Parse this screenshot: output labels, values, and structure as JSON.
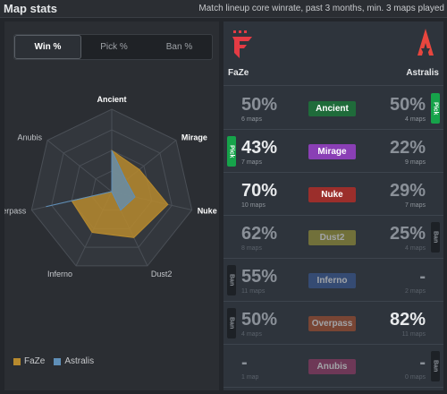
{
  "header": {
    "title": "Map stats",
    "subtitle": "Match lineup core winrate, past 3 months, min. 3 maps played"
  },
  "tabs": [
    {
      "label": "Win %",
      "active": true
    },
    {
      "label": "Pick %",
      "active": false
    },
    {
      "label": "Ban %",
      "active": false
    }
  ],
  "chart_data": {
    "type": "radar",
    "axes": [
      "Ancient",
      "Mirage",
      "Nuke",
      "Dust2",
      "Inferno",
      "Overpass",
      "Anubis"
    ],
    "bold_axes": [
      "Ancient",
      "Mirage",
      "Nuke"
    ],
    "range": [
      0,
      100
    ],
    "series": [
      {
        "name": "FaZe",
        "color": "#b78a2e",
        "values": [
          50,
          43,
          70,
          62,
          55,
          50,
          0
        ]
      },
      {
        "name": "Astralis",
        "color": "#5f8fb8",
        "values": [
          50,
          22,
          29,
          25,
          0,
          82,
          0
        ]
      }
    ]
  },
  "legend": [
    {
      "name": "FaZe",
      "color": "#b78a2e"
    },
    {
      "name": "Astralis",
      "color": "#5f8fb8"
    }
  ],
  "teams": {
    "left": {
      "name": "FaZe",
      "logo": "faze-logo"
    },
    "right": {
      "name": "Astralis",
      "logo": "astralis-logo"
    }
  },
  "maps": [
    {
      "map": "Ancient",
      "badge_color": "#1f6b3a",
      "dim": false,
      "left": {
        "pct": "50%",
        "maps": "6 maps",
        "bright": false
      },
      "right": {
        "pct": "50%",
        "maps": "4 maps",
        "bright": false
      },
      "tag": {
        "side": "right",
        "type": "pick",
        "label": "Pick"
      }
    },
    {
      "map": "Mirage",
      "badge_color": "#8a3fb5",
      "dim": false,
      "left": {
        "pct": "43%",
        "maps": "7 maps",
        "bright": true
      },
      "right": {
        "pct": "22%",
        "maps": "9 maps",
        "bright": false
      },
      "tag": {
        "side": "left",
        "type": "pick",
        "label": "Pick"
      }
    },
    {
      "map": "Nuke",
      "badge_color": "#9b2e2b",
      "dim": false,
      "left": {
        "pct": "70%",
        "maps": "10 maps",
        "bright": true
      },
      "right": {
        "pct": "29%",
        "maps": "7 maps",
        "bright": false
      },
      "tag": null
    },
    {
      "map": "Dust2",
      "badge_color": "#a8a23a",
      "dim": true,
      "left": {
        "pct": "62%",
        "maps": "8 maps",
        "bright": false
      },
      "right": {
        "pct": "25%",
        "maps": "4 maps",
        "bright": false
      },
      "tag": {
        "side": "right",
        "type": "ban",
        "label": "Ban"
      }
    },
    {
      "map": "Inferno",
      "badge_color": "#3b5fa0",
      "dim": true,
      "left": {
        "pct": "55%",
        "maps": "11 maps",
        "bright": false
      },
      "right": {
        "pct": "-",
        "maps": "2 maps",
        "bright": false
      },
      "tag": {
        "side": "left",
        "type": "ban",
        "label": "Ban"
      }
    },
    {
      "map": "Overpass",
      "badge_color": "#b5532e",
      "dim": true,
      "left": {
        "pct": "50%",
        "maps": "4 maps",
        "bright": false
      },
      "right": {
        "pct": "82%",
        "maps": "11 maps",
        "bright": true
      },
      "tag": {
        "side": "left",
        "type": "ban",
        "label": "Ban"
      }
    },
    {
      "map": "Anubis",
      "badge_color": "#a33c6e",
      "dim": true,
      "left": {
        "pct": "-",
        "maps": "1 map",
        "bright": false
      },
      "right": {
        "pct": "-",
        "maps": "0 maps",
        "bright": false
      },
      "tag": {
        "side": "right",
        "type": "ban",
        "label": "Ban"
      }
    }
  ]
}
